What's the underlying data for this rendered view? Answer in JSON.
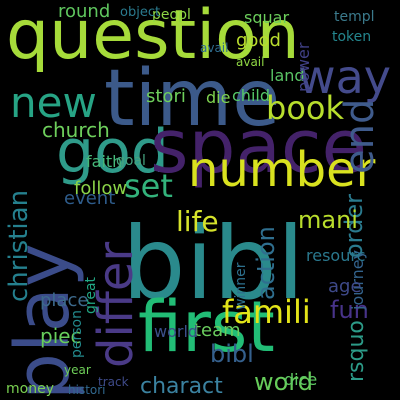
{
  "word_cloud": {
    "words": [
      {
        "text": "question",
        "color": "#a6db3a"
      },
      {
        "text": "time",
        "color": "#3c5a8a"
      },
      {
        "text": "bibl",
        "color": "#2a8a8c"
      },
      {
        "text": "god",
        "color": "#2f9b8a"
      },
      {
        "text": "space",
        "color": "#44226a"
      },
      {
        "text": "play",
        "color": "#3b4c8a"
      },
      {
        "text": "first",
        "color": "#22bd76"
      },
      {
        "text": "number",
        "color": "#d9e21f"
      },
      {
        "text": "new",
        "color": "#27a485"
      },
      {
        "text": "way",
        "color": "#444b8c"
      },
      {
        "text": "book",
        "color": "#b8de2d"
      },
      {
        "text": "set",
        "color": "#33b27b"
      },
      {
        "text": "differ",
        "color": "#4a3a87"
      },
      {
        "text": "famili",
        "color": "#e3e418"
      },
      {
        "text": "end",
        "color": "#3f5b8c"
      },
      {
        "text": "life",
        "color": "#d6e32b"
      },
      {
        "text": "christian",
        "color": "#25808e"
      },
      {
        "text": "church",
        "color": "#6ecf5c"
      },
      {
        "text": "charact",
        "color": "#3b82a0"
      },
      {
        "text": "word",
        "color": "#66cc5a"
      },
      {
        "text": "order",
        "color": "#2a7a8e"
      },
      {
        "text": "action",
        "color": "#2f6f8f"
      },
      {
        "text": "mani",
        "color": "#b9dd2c"
      },
      {
        "text": "fun",
        "color": "#48338a"
      },
      {
        "text": "piec",
        "color": "#67ce5b"
      },
      {
        "text": "place",
        "color": "#3d6a8c"
      },
      {
        "text": "rsquo",
        "color": "#2c9b88"
      },
      {
        "text": "event",
        "color": "#2e5c8b"
      },
      {
        "text": "follow",
        "color": "#8bd448"
      },
      {
        "text": "faith",
        "color": "#46b97a"
      },
      {
        "text": "round",
        "color": "#5fc65e"
      },
      {
        "text": "good",
        "color": "#b9dd2e"
      },
      {
        "text": "stori",
        "color": "#6ecf5c"
      },
      {
        "text": "child",
        "color": "#55c768"
      },
      {
        "text": "die",
        "color": "#7ed24f"
      },
      {
        "text": "land",
        "color": "#59c465"
      },
      {
        "text": "power",
        "color": "#404086"
      },
      {
        "text": "squar",
        "color": "#6bcd5b"
      },
      {
        "text": "peopl",
        "color": "#8ed645"
      },
      {
        "text": "object",
        "color": "#2a7a8e"
      },
      {
        "text": "templ",
        "color": "#3b7a8c"
      },
      {
        "text": "token",
        "color": "#24868e"
      },
      {
        "text": "bibl",
        "color": "#35608d"
      },
      {
        "text": "team",
        "color": "#6acc5e"
      },
      {
        "text": "dice",
        "color": "#5ec962"
      },
      {
        "text": "world",
        "color": "#3c4f8a"
      },
      {
        "text": "goal",
        "color": "#46a27e"
      },
      {
        "text": "journey",
        "color": "#33638d"
      },
      {
        "text": "great",
        "color": "#22a884"
      },
      {
        "text": "resourc",
        "color": "#2a788e"
      },
      {
        "text": "age",
        "color": "#3e4989"
      },
      {
        "text": "person",
        "color": "#238a8d"
      },
      {
        "text": "money",
        "color": "#7ad151"
      },
      {
        "text": "winner",
        "color": "#2d718e"
      },
      {
        "text": "histori",
        "color": "#31688e"
      },
      {
        "text": "year",
        "color": "#6ece58"
      },
      {
        "text": "track",
        "color": "#3e4a89"
      },
      {
        "text": "avail",
        "color": "#2f6c8e"
      },
      {
        "text": "avail",
        "color": "#8fd744"
      }
    ]
  }
}
